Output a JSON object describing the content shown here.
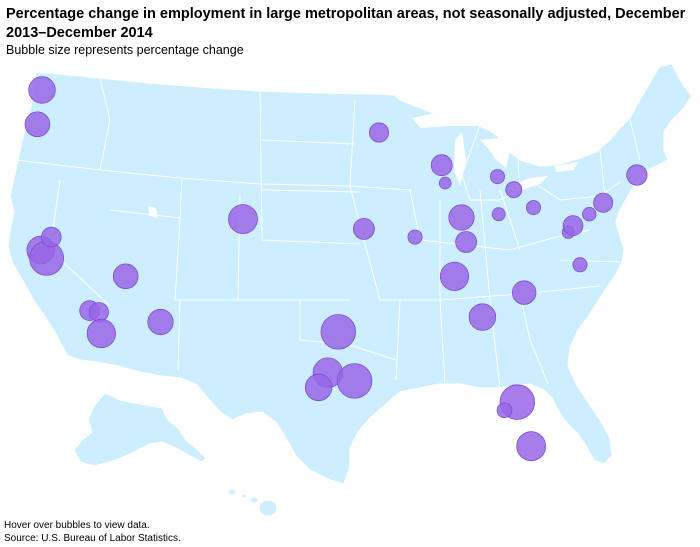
{
  "title": "Percentage change in employment in large metropolitan areas, not seasonally adjusted, December 2013–December 2014",
  "subtitle": "Bubble size represents  percentage change",
  "footer": {
    "note": "Hover over bubbles to view data.",
    "source": "Source: U.S. Bureau of Labor Statistics."
  },
  "colors": {
    "bubble": "#9966e6",
    "land": "#cceeff",
    "borders": "#ffffff"
  },
  "bubbles": [
    {
      "name": "bubble-seattle",
      "lon": -122.3,
      "lat": 47.6,
      "size": 3.0
    },
    {
      "name": "bubble-portland",
      "lon": -122.7,
      "lat": 45.5,
      "size": 2.7
    },
    {
      "name": "bubble-san-francisco",
      "lon": -122.4,
      "lat": 37.8,
      "size": 3.2
    },
    {
      "name": "bubble-san-jose",
      "lon": -121.9,
      "lat": 37.3,
      "size": 4.2
    },
    {
      "name": "bubble-sacramento",
      "lon": -121.5,
      "lat": 38.6,
      "size": 1.9
    },
    {
      "name": "bubble-los-angeles",
      "lon": -118.2,
      "lat": 34.1,
      "size": 1.9
    },
    {
      "name": "bubble-riverside",
      "lon": -117.4,
      "lat": 34.0,
      "size": 1.8
    },
    {
      "name": "bubble-san-diego",
      "lon": -117.2,
      "lat": 32.7,
      "size": 3.3
    },
    {
      "name": "bubble-las-vegas",
      "lon": -115.1,
      "lat": 36.2,
      "size": 2.7
    },
    {
      "name": "bubble-phoenix",
      "lon": -112.1,
      "lat": 33.4,
      "size": 2.8
    },
    {
      "name": "bubble-denver",
      "lon": -105.0,
      "lat": 39.7,
      "size": 3.4
    },
    {
      "name": "bubble-dallas",
      "lon": -96.8,
      "lat": 32.8,
      "size": 4.3
    },
    {
      "name": "bubble-austin",
      "lon": -97.7,
      "lat": 30.3,
      "size": 3.5
    },
    {
      "name": "bubble-san-antonio",
      "lon": -98.5,
      "lat": 29.4,
      "size": 3.0
    },
    {
      "name": "bubble-houston",
      "lon": -95.4,
      "lat": 29.8,
      "size": 4.3
    },
    {
      "name": "bubble-kansas-city",
      "lon": -94.6,
      "lat": 39.1,
      "size": 2.1
    },
    {
      "name": "bubble-minneapolis",
      "lon": -93.3,
      "lat": 45.0,
      "size": 1.8
    },
    {
      "name": "bubble-st-louis",
      "lon": -90.2,
      "lat": 38.6,
      "size": 1.0
    },
    {
      "name": "bubble-chicago",
      "lon": -87.6,
      "lat": 41.9,
      "size": 0.6
    },
    {
      "name": "bubble-milwaukee",
      "lon": -87.9,
      "lat": 43.0,
      "size": 2.1
    },
    {
      "name": "bubble-indianapolis",
      "lon": -86.2,
      "lat": 39.8,
      "size": 2.8
    },
    {
      "name": "bubble-nashville",
      "lon": -86.8,
      "lat": 36.2,
      "size": 3.3
    },
    {
      "name": "bubble-atlanta",
      "lon": -84.4,
      "lat": 33.7,
      "size": 3.0
    },
    {
      "name": "bubble-louisville",
      "lon": -85.8,
      "lat": 38.3,
      "size": 2.1
    },
    {
      "name": "bubble-detroit",
      "lon": -83.1,
      "lat": 42.3,
      "size": 1.0
    },
    {
      "name": "bubble-cleveland",
      "lon": -81.7,
      "lat": 41.5,
      "size": 1.3
    },
    {
      "name": "bubble-columbus",
      "lon": -83.0,
      "lat": 40.0,
      "size": 0.8
    },
    {
      "name": "bubble-pittsburgh",
      "lon": -80.0,
      "lat": 40.4,
      "size": 1.0
    },
    {
      "name": "bubble-charlotte",
      "lon": -80.8,
      "lat": 35.2,
      "size": 2.5
    },
    {
      "name": "bubble-orlando",
      "lon": -81.4,
      "lat": 28.5,
      "size": 4.3
    },
    {
      "name": "bubble-tampa",
      "lon": -82.5,
      "lat": 28.0,
      "size": 1.1
    },
    {
      "name": "bubble-miami",
      "lon": -80.2,
      "lat": 25.8,
      "size": 3.4
    },
    {
      "name": "bubble-washington",
      "lon": -77.0,
      "lat": 38.9,
      "size": 0.7
    },
    {
      "name": "bubble-baltimore",
      "lon": -76.6,
      "lat": 39.3,
      "size": 1.9
    },
    {
      "name": "bubble-philadelphia",
      "lon": -75.2,
      "lat": 40.0,
      "size": 0.9
    },
    {
      "name": "bubble-new-york",
      "lon": -74.0,
      "lat": 40.7,
      "size": 1.8
    },
    {
      "name": "bubble-boston",
      "lon": -71.1,
      "lat": 42.4,
      "size": 2.0
    },
    {
      "name": "bubble-virginia-beach",
      "lon": -76.0,
      "lat": 36.9,
      "size": 1.0
    }
  ]
}
